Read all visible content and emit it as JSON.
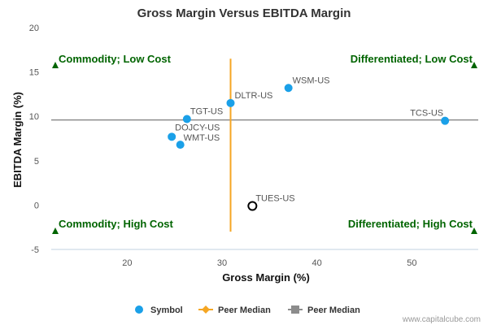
{
  "chart_data": {
    "type": "scatter",
    "title": "Gross Margin Versus EBITDA Margin",
    "xlabel": "Gross Margin (%)",
    "ylabel": "EBITDA Margin (%)",
    "xlim": [
      12,
      57
    ],
    "ylim": [
      -5,
      20
    ],
    "xticks": [
      20,
      30,
      40,
      50
    ],
    "yticks": [
      -5,
      0,
      5,
      10,
      15,
      20
    ],
    "grid": false,
    "points": [
      {
        "label": "WSM-US",
        "x": 37.0,
        "y": 13.2,
        "style": "filled"
      },
      {
        "label": "DLTR-US",
        "x": 30.9,
        "y": 11.5,
        "style": "filled"
      },
      {
        "label": "TGT-US",
        "x": 26.3,
        "y": 9.7,
        "style": "filled"
      },
      {
        "label": "TCS-US",
        "x": 53.5,
        "y": 9.5,
        "style": "filled"
      },
      {
        "label": "DOJCY-US",
        "x": 24.7,
        "y": 7.7,
        "style": "filled"
      },
      {
        "label": "WMT-US",
        "x": 25.6,
        "y": 6.8,
        "style": "filled"
      },
      {
        "label": "TUES-US",
        "x": 33.2,
        "y": -0.1,
        "style": "hollow"
      }
    ],
    "peer_median_x": 30.9,
    "peer_median_x_span": [
      -3,
      16.5
    ],
    "peer_median_y": 9.6,
    "quadrants": {
      "top_left": "Commodity; Low Cost",
      "top_right": "Differentiated; Low Cost",
      "bottom_left": "Commodity; High Cost",
      "bottom_right": "Differentiated; High Cost"
    },
    "legend": {
      "placement": "bottom-center",
      "items": [
        {
          "name": "Symbol",
          "marker": "circle",
          "color": "#1aa0e8"
        },
        {
          "name": "Peer Median",
          "marker": "diamond-line",
          "color": "#f5a623"
        },
        {
          "name": "Peer Median",
          "marker": "square-line",
          "color": "#8c8c8c"
        }
      ]
    },
    "colors": {
      "point": "#1aa0e8",
      "median_vertical": "#f5a623",
      "median_horizontal": "#8c8c8c",
      "quadrant_text": "#006400"
    }
  },
  "credit": "www.capitalcube.com"
}
